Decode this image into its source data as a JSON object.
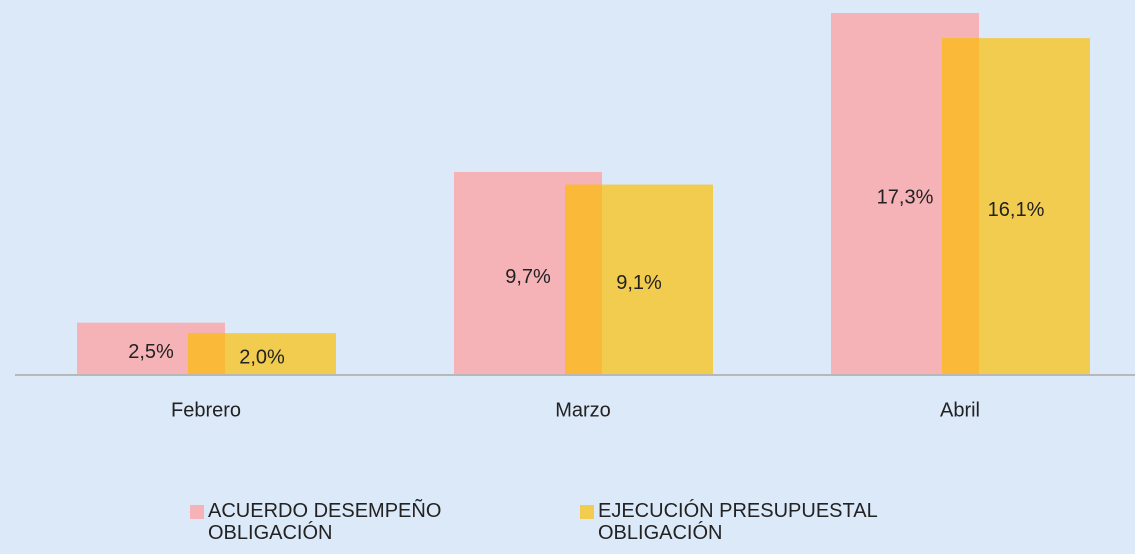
{
  "chart_data": {
    "type": "bar",
    "categories": [
      "Febrero",
      "Marzo",
      "Abril"
    ],
    "series": [
      {
        "name": "ACUERDO DESEMPEÑO OBLIGACIÓN",
        "color": "#f5b3b8",
        "values": [
          2.5,
          9.7,
          17.3
        ],
        "value_labels": [
          "2,5%",
          "9,7%",
          "17,3%"
        ]
      },
      {
        "name": "EJECUCIÓN PRESUPUESTAL OBLIGACIÓN",
        "color": "#f2cc4f",
        "values": [
          2.0,
          9.1,
          16.1
        ],
        "value_labels": [
          "2,0%",
          "9,1%",
          "16,1%"
        ]
      }
    ],
    "overlap_color": "#fbb93a",
    "background": "#dce9f8"
  }
}
